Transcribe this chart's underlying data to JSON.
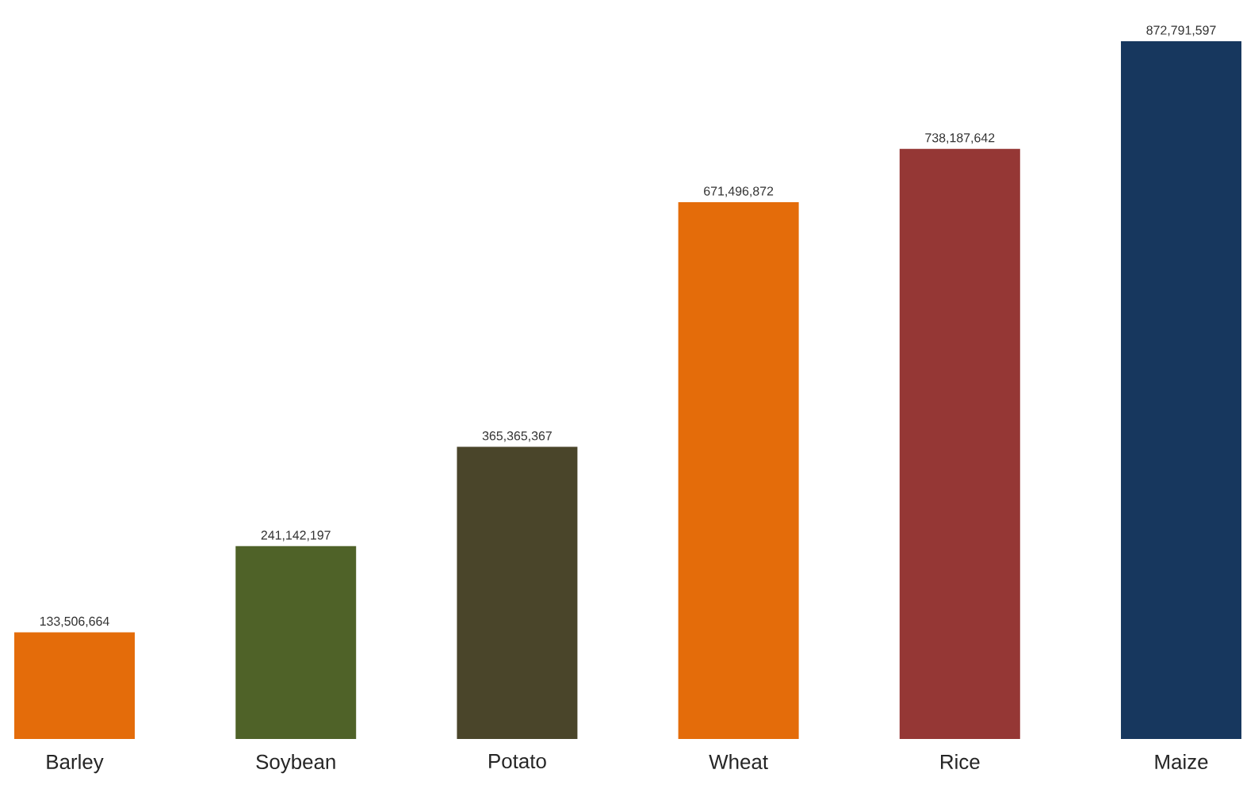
{
  "chart_data": {
    "type": "bar",
    "categories": [
      "Barley",
      "Soybean",
      "Potato",
      "Wheat",
      "Rice",
      "Maize"
    ],
    "values": [
      133506664,
      241142197,
      365365367,
      671496872,
      738187642,
      872791597
    ],
    "colors": [
      "#e46c0a",
      "#4f6228",
      "#4a452a",
      "#e46c0a",
      "#953735",
      "#17375e"
    ],
    "value_labels": [
      "133,506,664",
      "241,142,197",
      "365,365,367",
      "671,496,872",
      "738,187,642",
      "872,791,597"
    ]
  }
}
